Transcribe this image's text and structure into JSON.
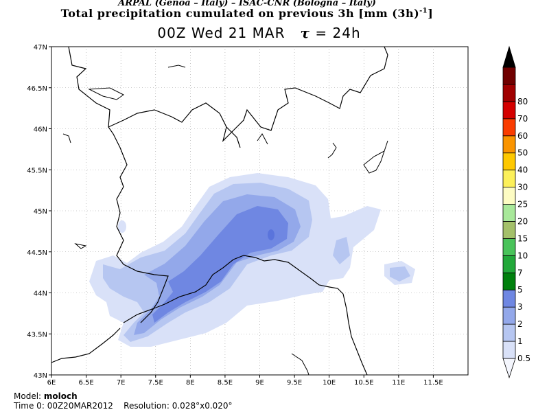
{
  "header": {
    "credit": "ARPAL (Genoa – Italy)  –  ISAC-CNR (Bologna – Italy)",
    "title": "Total precipitation cumulated on previous 3h [mm (3h)",
    "title_unit_exp": "-1",
    "title_close": "]",
    "valid_time": "00Z Wed 21 MAR",
    "tau_symbol": "τ",
    "forecast_step": "= 24h"
  },
  "map": {
    "lat_labels": [
      "47N",
      "46.5N",
      "46N",
      "45.5N",
      "45N",
      "44.5N",
      "44N",
      "43.5N",
      "43N"
    ],
    "lon_labels": [
      "6E",
      "6.5E",
      "7E",
      "7.5E",
      "8E",
      "8.5E",
      "9E",
      "9.5E",
      "10E",
      "10.5E",
      "11E",
      "11.5E"
    ],
    "lat_range": [
      43,
      47
    ],
    "lon_range": [
      6,
      12
    ],
    "grid": true
  },
  "colorbar": {
    "levels": [
      "0.5",
      "1",
      "2",
      "3",
      "5",
      "7",
      "10",
      "15",
      "20",
      "25",
      "30",
      "40",
      "50",
      "60",
      "70",
      "80"
    ],
    "colors": [
      "#f4f6fd",
      "#d9e1f8",
      "#b6c6f1",
      "#93a8ea",
      "#6f87e2",
      "#00800d",
      "#22a83a",
      "#49c35a",
      "#a4c06a",
      "#a8e89a",
      "#fdfcc3",
      "#fcf05a",
      "#fec800",
      "#fa9400",
      "#fa3c00",
      "#d40000",
      "#a00000",
      "#700000",
      "#000000"
    ]
  },
  "footer": {
    "model_label": "Model:",
    "model_name": "moloch",
    "time0_label": "Time 0:",
    "time0_value": "00Z20MAR2012",
    "resolution_label": "Resolution:",
    "resolution_value": "0.028°x0.020°"
  }
}
